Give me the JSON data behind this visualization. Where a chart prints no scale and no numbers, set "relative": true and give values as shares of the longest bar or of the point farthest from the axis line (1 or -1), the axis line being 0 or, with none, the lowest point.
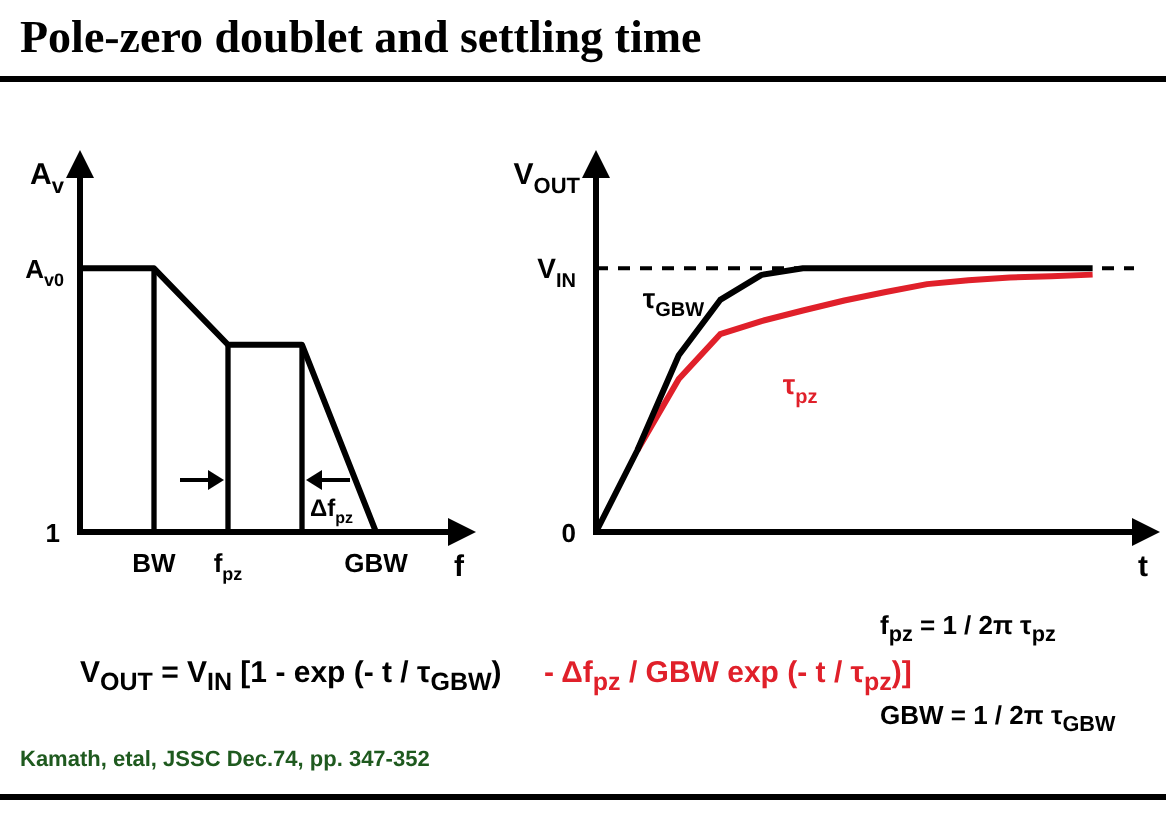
{
  "chart_data": [
    {
      "type": "line",
      "title": "Pole-zero doublet and settling time",
      "xlabel": "f",
      "ylabel": "A$_{v}$",
      "relative": true,
      "categories": [
        null,
        "BW",
        "f$_{pz}$",
        null,
        "GBW",
        null
      ],
      "series": [
        {
          "color": "#000000",
          "values": [
            1,
            1,
            0.71,
            0.71,
            0,
            null
          ]
        },
        {
          "type": "bar",
          "color": "#000000",
          "values": [
            null,
            1,
            0.71,
            0.71,
            null,
            null
          ]
        }
      ],
      "annotations": [
        "A$_{v0}$",
        "1",
        "Δf$_{pz}$"
      ],
      "legend": false,
      "marker": "none"
    },
    {
      "type": "line",
      "xlabel": "t",
      "ylabel": "V$_{OUT}$",
      "relative": true,
      "categories": [
        null,
        null,
        null,
        null,
        null,
        null,
        null,
        null,
        null,
        null,
        null,
        null,
        null,
        null
      ],
      "series": [
        {
          "name": "τ$_{GBW}$",
          "color": "#000000",
          "values": [
            0,
            0.31,
            0.67,
            0.88,
            0.975,
            1,
            1,
            1,
            1,
            1,
            1,
            1,
            1,
            null
          ]
        },
        {
          "name": "τ$_{pz}$",
          "color": "#e0202a",
          "values": [
            null,
            0.31,
            0.58,
            0.75,
            0.8,
            0.84,
            0.878,
            0.91,
            0.94,
            0.955,
            0.965,
            0.97,
            0.976,
            null
          ]
        }
      ],
      "ref_lines": [
        {
          "axis": "y",
          "value": 1,
          "label": "V$_{IN}$",
          "line_style": "dashed"
        }
      ],
      "annotations": [
        "0"
      ],
      "legend": false,
      "marker": "none"
    },
    {
      "type": "other",
      "annotations": [
        "V$_{OUT}$ = V$_{IN}$ [1 - exp (- t / τ$_{GBW}$)",
        "- Δf$_{pz}$ / GBW exp (- t / τ$_{pz}$)]",
        "f$_{pz}$ = 1 / 2π τ$_{pz}$",
        "GBW = 1 / 2π τ$_{GBW}$",
        "Kamath, etal, JSSC Dec.74, pp. 347-352"
      ]
    }
  ]
}
